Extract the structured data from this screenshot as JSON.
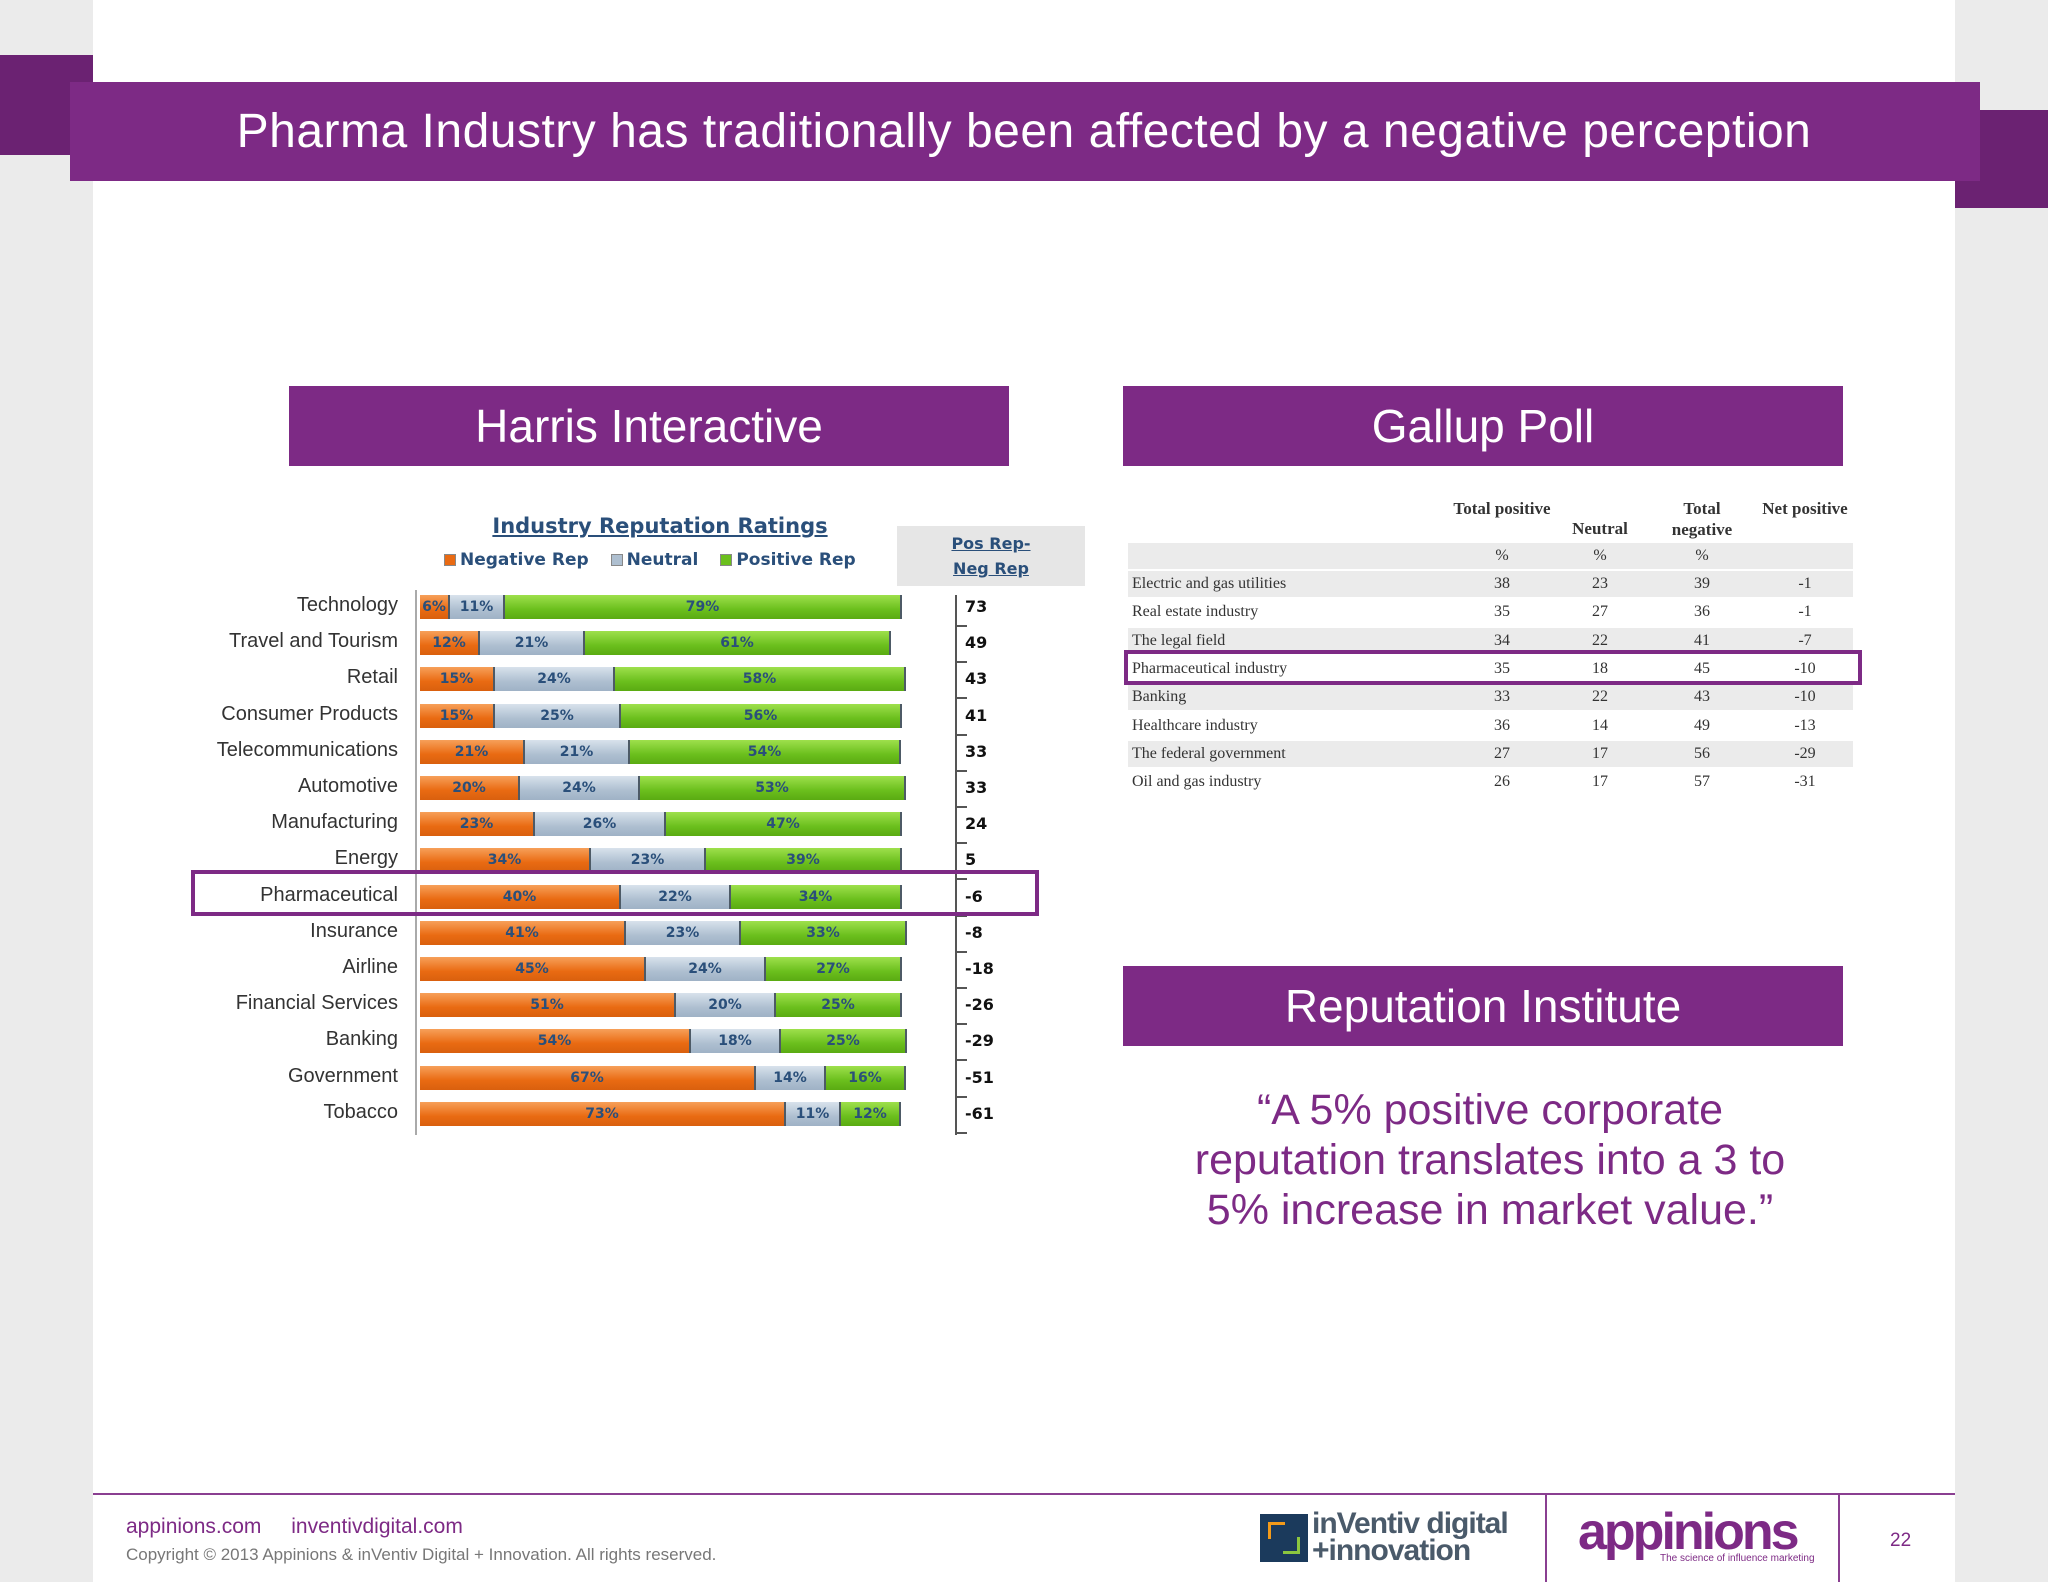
{
  "title": "Pharma Industry has traditionally been affected by a negative perception",
  "sections": {
    "harris": "Harris Interactive",
    "gallup": "Gallup Poll",
    "reputation": "Reputation Institute"
  },
  "harris_chart": {
    "title": "Industry Reputation Ratings",
    "legend": [
      "Negative Rep",
      "Neutral",
      "Positive Rep"
    ],
    "net_header_1": "Pos Rep-",
    "net_header_2": "Neg Rep"
  },
  "chart_data": {
    "type": "bar",
    "title": "Industry Reputation Ratings",
    "categories": [
      "Technology",
      "Travel and Tourism",
      "Retail",
      "Consumer Products",
      "Telecommunications",
      "Automotive",
      "Manufacturing",
      "Energy",
      "Pharmaceutical",
      "Insurance",
      "Airline",
      "Financial Services",
      "Banking",
      "Government",
      "Tobacco"
    ],
    "series": [
      {
        "name": "Negative Rep",
        "values": [
          6,
          12,
          15,
          15,
          21,
          20,
          23,
          34,
          40,
          41,
          45,
          51,
          54,
          67,
          73
        ],
        "labels": [
          "6%",
          "12%",
          "15%",
          "15%",
          "21%",
          "20%",
          "23%",
          "34%",
          "40%",
          "41%",
          "45%",
          "51%",
          "54%",
          "67%",
          "73%"
        ],
        "color": "#e96a12"
      },
      {
        "name": "Neutral",
        "values": [
          11,
          21,
          24,
          25,
          21,
          24,
          26,
          23,
          22,
          23,
          24,
          20,
          18,
          14,
          11
        ],
        "labels": [
          "11%",
          "21%",
          "24%",
          "25%",
          "21%",
          "24%",
          "26%",
          "23%",
          "22%",
          "23%",
          "24%",
          "20%",
          "18%",
          "14%",
          "11%"
        ],
        "color": "#aebfd0"
      },
      {
        "name": "Positive Rep",
        "values": [
          79,
          61,
          58,
          56,
          54,
          53,
          47,
          39,
          34,
          33,
          27,
          25,
          25,
          16,
          12
        ],
        "labels": [
          "79%",
          "61%",
          "58%",
          "56%",
          "54%",
          "53%",
          "47%",
          "39%",
          "34%",
          "33%",
          "27%",
          "25%",
          "25%",
          "16%",
          "12%"
        ],
        "color": "#6bbf1d"
      }
    ],
    "net": [
      "73",
      "49",
      "43",
      "41",
      "33",
      "33",
      "24",
      "5",
      "-6",
      "-8",
      "-18",
      "-26",
      "-29",
      "-51",
      "-61"
    ],
    "highlight": "Pharmaceutical"
  },
  "gallup": {
    "headers": [
      "Total positive",
      "Neutral",
      "Total negative",
      "Net positive"
    ],
    "units": [
      "%",
      "%",
      "%"
    ],
    "rows": [
      {
        "name": "Electric and gas utilities",
        "pos": "38",
        "neu": "23",
        "neg": "39",
        "net": "-1"
      },
      {
        "name": "Real estate industry",
        "pos": "35",
        "neu": "27",
        "neg": "36",
        "net": "-1"
      },
      {
        "name": "The legal field",
        "pos": "34",
        "neu": "22",
        "neg": "41",
        "net": "-7"
      },
      {
        "name": "Pharmaceutical industry",
        "pos": "35",
        "neu": "18",
        "neg": "45",
        "net": "-10"
      },
      {
        "name": "Banking",
        "pos": "33",
        "neu": "22",
        "neg": "43",
        "net": "-10"
      },
      {
        "name": "Healthcare industry",
        "pos": "36",
        "neu": "14",
        "neg": "49",
        "net": "-13"
      },
      {
        "name": "The federal government",
        "pos": "27",
        "neu": "17",
        "neg": "56",
        "net": "-29"
      },
      {
        "name": "Oil and gas industry",
        "pos": "26",
        "neu": "17",
        "neg": "57",
        "net": "-31"
      }
    ]
  },
  "quote": "“A 5% positive corporate reputation translates into a 3 to 5% increase in market value.”",
  "footer": {
    "link1": "appinions.com",
    "link2": "inventivdigital.com",
    "copyright": "Copyright © 2013 Appinions & inVentiv Digital + Innovation. All rights reserved.",
    "logo1_line1": "inVentiv digital",
    "logo1_line2": "+innovation",
    "logo2": "appinions",
    "logo2_tag": "The science of influence marketing",
    "page": "22"
  }
}
